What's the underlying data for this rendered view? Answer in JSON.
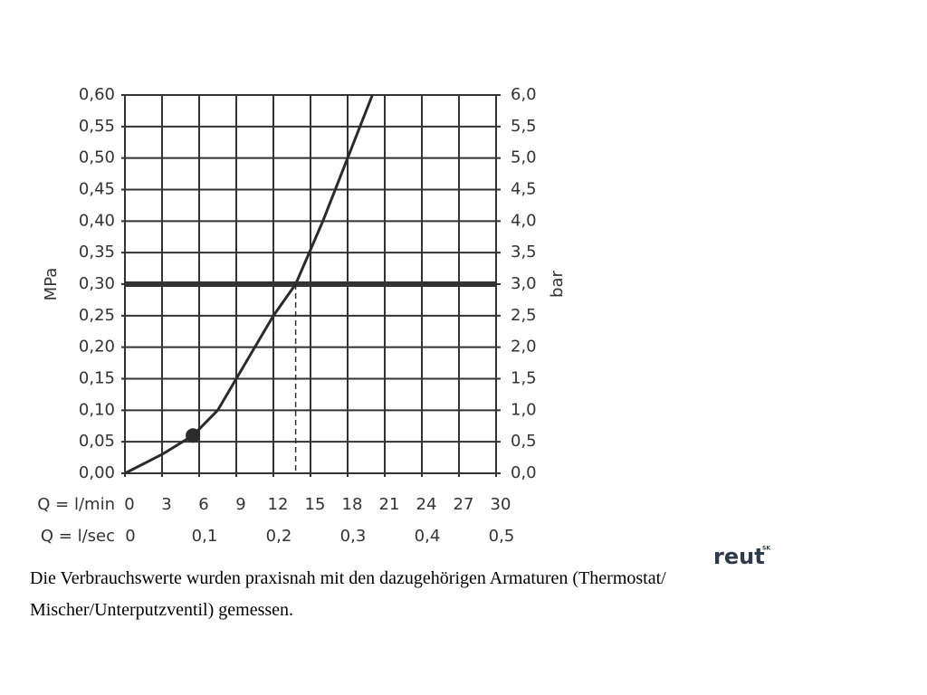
{
  "chart_data": {
    "type": "line",
    "ylabel": "MPa",
    "y2label": "bar",
    "xlabel": "Q = l/min",
    "x2label": "Q = l/sec",
    "xlim": [
      0,
      30
    ],
    "xticks": [
      0,
      3,
      6,
      9,
      12,
      15,
      18,
      21,
      24,
      27,
      30
    ],
    "x2lim": [
      0,
      0.5
    ],
    "x2ticks": [
      0,
      {
        "value": 0.1,
        "label": "0,1"
      },
      {
        "value": 0.2,
        "label": "0,2"
      },
      {
        "value": 0.3,
        "label": "0,3"
      },
      {
        "value": 0.4,
        "label": "0,4"
      },
      {
        "value": 0.5,
        "label": "0,5"
      }
    ],
    "ylim": [
      0,
      0.6
    ],
    "yticks": [
      {
        "value": 0,
        "label": "0,00"
      },
      {
        "value": 0.05,
        "label": "0,05"
      },
      {
        "value": 0.1,
        "label": "0,10"
      },
      {
        "value": 0.15,
        "label": "0,15"
      },
      {
        "value": 0.2,
        "label": "0,20"
      },
      {
        "value": 0.25,
        "label": "0,25"
      },
      {
        "value": 0.3,
        "label": "0,30"
      },
      {
        "value": 0.35,
        "label": "0,35"
      },
      {
        "value": 0.4,
        "label": "0,40"
      },
      {
        "value": 0.45,
        "label": "0,45"
      },
      {
        "value": 0.5,
        "label": "0,50"
      },
      {
        "value": 0.55,
        "label": "0,55"
      },
      {
        "value": 0.6,
        "label": "0,60"
      }
    ],
    "y2lim": [
      0,
      6
    ],
    "y2ticks": [
      {
        "value": 0,
        "label": "0,0"
      },
      {
        "value": 0.5,
        "label": "0,5"
      },
      {
        "value": 1,
        "label": "1,0"
      },
      {
        "value": 1.5,
        "label": "1,5"
      },
      {
        "value": 2,
        "label": "2,0"
      },
      {
        "value": 2.5,
        "label": "2,5"
      },
      {
        "value": 3,
        "label": "3,0"
      },
      {
        "value": 3.5,
        "label": "3,5"
      },
      {
        "value": 4,
        "label": "4,0"
      },
      {
        "value": 4.5,
        "label": "4,5"
      },
      {
        "value": 5,
        "label": "5,0"
      },
      {
        "value": 5.5,
        "label": "5,5"
      },
      {
        "value": 6,
        "label": "6,0"
      }
    ],
    "grid": true,
    "color": "#2b2b2b",
    "x": [
      0,
      3,
      5.5,
      7.5,
      9,
      10.5,
      12,
      13.8,
      16,
      18,
      20
    ],
    "values": [
      0,
      0.03,
      0.06,
      0.1,
      0.15,
      0.2,
      0.25,
      0.3,
      0.4,
      0.5,
      0.6
    ],
    "marker": {
      "x": 5.5,
      "y": 0.06
    },
    "reference_line": 0.3,
    "operating_point": {
      "x": 13.8,
      "y": 0.3
    }
  },
  "caption": [
    "Die Verbrauchswerte wurden praxisnah mit den dazugehörigen Armaturen (Thermostat/",
    "Mischer/Unterputzventil) gemessen."
  ],
  "logo": {
    "text": "reut",
    "sup": "SK"
  }
}
